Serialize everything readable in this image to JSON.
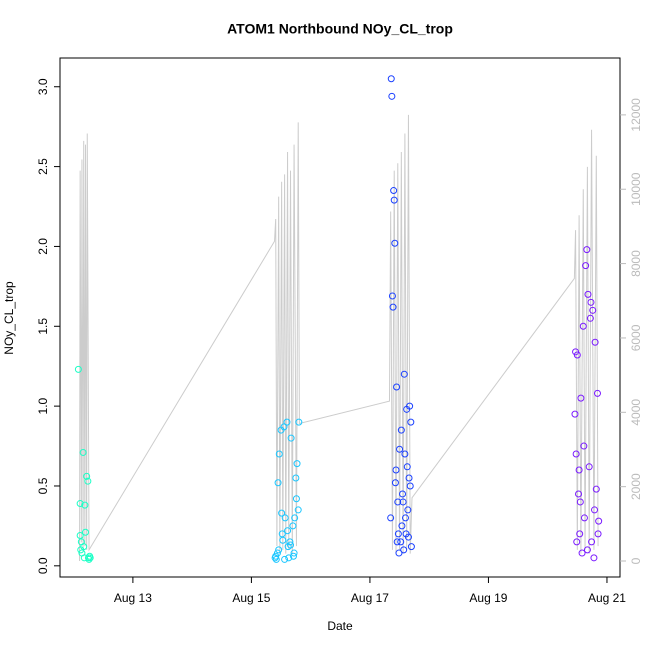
{
  "chart_data": {
    "type": "scatter",
    "title": "ATOM1 Northbound NOy_CL_trop",
    "x_label": "Date",
    "y_label": "NOy_CL_trop",
    "xlim": [
      11.77,
      21.22
    ],
    "xticks": [
      {
        "value": 13,
        "label": "Aug 13"
      },
      {
        "value": 15,
        "label": "Aug 15"
      },
      {
        "value": 17,
        "label": "Aug 17"
      },
      {
        "value": 19,
        "label": "Aug 19"
      },
      {
        "value": 21,
        "label": "Aug 21"
      }
    ],
    "ylim": [
      -0.07,
      3.18
    ],
    "yticks": [
      {
        "value": 0,
        "label": "0.0"
      },
      0.5,
      {
        "value": 1,
        "label": "1.0"
      },
      1.5,
      {
        "value": 2,
        "label": "2.0"
      },
      2.5,
      {
        "value": 3,
        "label": "3.0"
      }
    ],
    "y2lim": [
      -430,
      13530
    ],
    "y2ticks": [
      0,
      2000,
      4000,
      6000,
      8000,
      10000,
      12000
    ],
    "series": [
      {
        "color": "#1affc6",
        "x": [
          12.08,
          12.11,
          12.11,
          12.13,
          12.14,
          12.16,
          12.17,
          12.19,
          12.2,
          12.22,
          12.24,
          12.25,
          12.26,
          12.27,
          12.28,
          12.12,
          12.18
        ],
        "values": [
          1.23,
          0.39,
          0.19,
          0.15,
          0.08,
          0.71,
          0.12,
          0.38,
          0.21,
          0.56,
          0.53,
          0.05,
          0.04,
          0.06,
          0.05,
          0.1,
          0.05
        ]
      },
      {
        "color": "#1ac6ff",
        "x": [
          15.4,
          15.42,
          15.45,
          15.47,
          15.5,
          15.52,
          15.55,
          15.57,
          15.6,
          15.62,
          15.65,
          15.67,
          15.7,
          15.72,
          15.75,
          15.77,
          15.8,
          15.41,
          15.46,
          15.51,
          15.56,
          15.61,
          15.66,
          15.71,
          15.76,
          15.79,
          15.44,
          15.53,
          15.63,
          15.73
        ],
        "values": [
          0.05,
          0.04,
          0.52,
          0.7,
          0.85,
          0.2,
          0.87,
          0.3,
          0.9,
          0.12,
          0.15,
          0.8,
          0.25,
          0.08,
          0.55,
          0.64,
          0.9,
          0.06,
          0.1,
          0.33,
          0.04,
          0.22,
          0.13,
          0.06,
          0.42,
          0.35,
          0.08,
          0.16,
          0.05,
          0.3
        ]
      },
      {
        "color": "#1a40ff",
        "x": [
          17.36,
          17.37,
          17.38,
          17.39,
          17.4,
          17.41,
          17.42,
          17.44,
          17.45,
          17.47,
          17.48,
          17.5,
          17.52,
          17.53,
          17.55,
          17.57,
          17.58,
          17.6,
          17.62,
          17.63,
          17.65,
          17.67,
          17.68,
          17.7,
          17.35,
          17.43,
          17.49,
          17.54,
          17.59,
          17.64,
          17.69,
          17.46,
          17.56,
          17.61,
          17.66
        ],
        "values": [
          3.05,
          2.94,
          1.69,
          1.62,
          2.35,
          2.29,
          2.02,
          0.6,
          1.12,
          0.4,
          0.2,
          0.73,
          0.15,
          0.85,
          0.45,
          0.1,
          1.2,
          0.3,
          0.98,
          0.62,
          0.18,
          1.0,
          0.5,
          0.12,
          0.3,
          0.52,
          0.08,
          0.25,
          0.7,
          0.35,
          0.9,
          0.15,
          0.4,
          0.2,
          0.55
        ]
      },
      {
        "color": "#7a1aff",
        "x": [
          20.46,
          20.47,
          20.48,
          20.5,
          20.52,
          20.54,
          20.56,
          20.58,
          20.6,
          20.62,
          20.64,
          20.66,
          20.68,
          20.7,
          20.72,
          20.74,
          20.76,
          20.78,
          20.8,
          20.82,
          20.84,
          20.86,
          20.49,
          20.55,
          20.61,
          20.67,
          20.73,
          20.79,
          20.85,
          20.53
        ],
        "values": [
          0.95,
          1.34,
          0.7,
          1.32,
          0.45,
          0.2,
          1.05,
          0.08,
          1.5,
          0.3,
          1.88,
          1.98,
          1.7,
          0.62,
          1.55,
          0.15,
          1.6,
          0.05,
          1.4,
          0.48,
          1.08,
          0.28,
          0.15,
          0.4,
          0.75,
          0.1,
          1.65,
          0.35,
          0.2,
          0.6
        ]
      },
      {
        "type": "line",
        "axis": "y2",
        "color": "#cccccc",
        "x": [
          12.1,
          12.11,
          12.13,
          12.14,
          12.16,
          12.17,
          12.19,
          12.2,
          12.22,
          12.23,
          12.26,
          15.39,
          15.41,
          15.43,
          15.46,
          15.48,
          15.51,
          15.53,
          15.56,
          15.58,
          15.61,
          15.63,
          15.66,
          15.69,
          15.72,
          15.76,
          15.79,
          15.81,
          17.33,
          17.35,
          17.38,
          17.41,
          17.44,
          17.47,
          17.5,
          17.53,
          17.56,
          17.59,
          17.62,
          17.65,
          17.68,
          17.71,
          20.45,
          20.47,
          20.5,
          20.53,
          20.56,
          20.6,
          20.63,
          20.67,
          20.7,
          20.74,
          20.78,
          20.82,
          20.85
        ],
        "values": [
          0,
          10500,
          500,
          10800,
          300,
          11300,
          400,
          11200,
          300,
          11500,
          300,
          8600,
          9200,
          400,
          9800,
          200,
          10200,
          300,
          10400,
          200,
          11000,
          300,
          10500,
          200,
          11200,
          400,
          11800,
          3700,
          4300,
          9400,
          300,
          10500,
          200,
          10700,
          300,
          11000,
          200,
          11500,
          300,
          12000,
          200,
          1700,
          7600,
          8900,
          300,
          9300,
          200,
          10000,
          300,
          10600,
          200,
          11600,
          300,
          10900,
          400
        ]
      }
    ]
  }
}
